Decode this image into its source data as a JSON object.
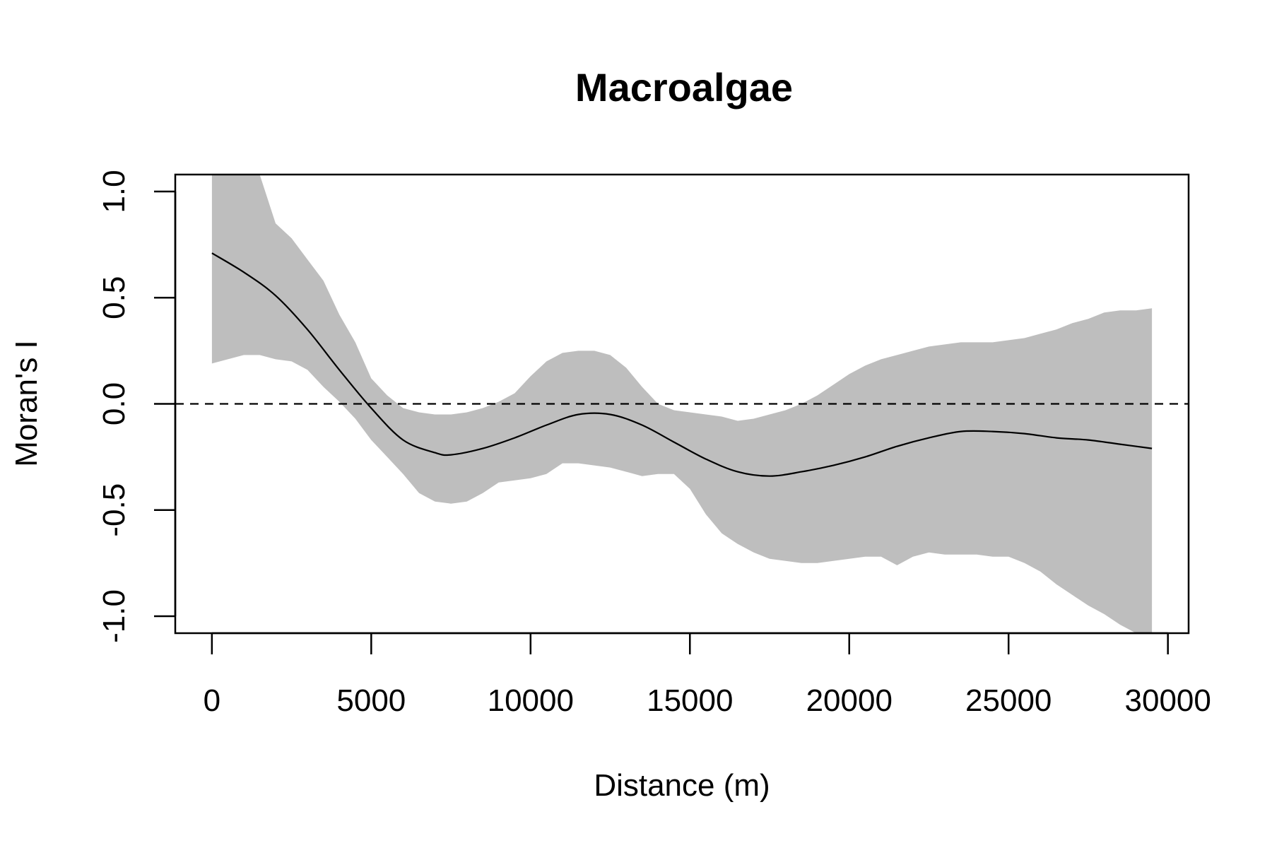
{
  "chart_data": {
    "type": "line",
    "title": "Macroalgae",
    "xlabel": "Distance (m)",
    "ylabel": "Moran's I",
    "xlim": [
      -1150,
      30650
    ],
    "ylim": [
      -1.08,
      1.08
    ],
    "x_ticks": [
      0,
      5000,
      10000,
      15000,
      20000,
      25000,
      30000
    ],
    "x_tick_labels": [
      "0",
      "5000",
      "10000",
      "15000",
      "20000",
      "25000",
      "30000"
    ],
    "y_ticks": [
      -1.0,
      -0.5,
      0.0,
      0.5,
      1.0
    ],
    "y_tick_labels": [
      "-1.0",
      "-0.5",
      "0.0",
      "0.5",
      "1.0"
    ],
    "reference_line": {
      "y": 0,
      "style": "dashed"
    },
    "grid": false,
    "colors": {
      "line": "#000000",
      "band": "#bebebe"
    },
    "series": [
      {
        "x": [
          0,
          1000,
          2000,
          3000,
          4000,
          5000,
          6000,
          7000,
          7500,
          8500,
          9500,
          10500,
          11500,
          12500,
          13500,
          14500,
          15500,
          16500,
          17500,
          18500,
          19500,
          20500,
          21500,
          22500,
          23500,
          24500,
          25500,
          26500,
          27500,
          28500,
          29500
        ],
        "y": [
          0.71,
          0.62,
          0.51,
          0.35,
          0.16,
          -0.02,
          -0.17,
          -0.23,
          -0.24,
          -0.21,
          -0.16,
          -0.1,
          -0.05,
          -0.05,
          -0.1,
          -0.18,
          -0.26,
          -0.32,
          -0.34,
          -0.32,
          -0.29,
          -0.25,
          -0.2,
          -0.16,
          -0.13,
          -0.13,
          -0.14,
          -0.16,
          -0.17,
          -0.19,
          -0.21
        ]
      }
    ],
    "band": {
      "x": [
        0,
        500,
        1000,
        1500,
        2000,
        2500,
        3000,
        3500,
        4000,
        4500,
        5000,
        5500,
        6000,
        6500,
        7000,
        7500,
        8000,
        8500,
        9000,
        9500,
        10000,
        10500,
        11000,
        11500,
        12000,
        12500,
        13000,
        13500,
        14000,
        14500,
        15000,
        15500,
        16000,
        16500,
        17000,
        17500,
        18000,
        18500,
        19000,
        19500,
        20000,
        20500,
        21000,
        21500,
        22000,
        22500,
        23000,
        23500,
        24000,
        24500,
        25000,
        25500,
        26000,
        26500,
        27000,
        27500,
        28000,
        28500,
        29000,
        29500
      ],
      "upper": [
        1.08,
        1.08,
        1.08,
        1.08,
        0.85,
        0.78,
        0.68,
        0.58,
        0.42,
        0.29,
        0.12,
        0.04,
        -0.02,
        -0.04,
        -0.05,
        -0.05,
        -0.04,
        -0.02,
        0.01,
        0.05,
        0.13,
        0.2,
        0.24,
        0.25,
        0.25,
        0.23,
        0.17,
        0.08,
        0.0,
        -0.03,
        -0.04,
        -0.05,
        -0.06,
        -0.08,
        -0.07,
        -0.05,
        -0.03,
        0.0,
        0.04,
        0.09,
        0.14,
        0.18,
        0.21,
        0.23,
        0.25,
        0.27,
        0.28,
        0.29,
        0.29,
        0.29,
        0.3,
        0.31,
        0.33,
        0.35,
        0.38,
        0.4,
        0.43,
        0.44,
        0.44,
        0.45
      ],
      "lower": [
        0.19,
        0.21,
        0.23,
        0.23,
        0.21,
        0.2,
        0.16,
        0.08,
        0.01,
        -0.07,
        -0.17,
        -0.25,
        -0.33,
        -0.42,
        -0.46,
        -0.47,
        -0.46,
        -0.42,
        -0.37,
        -0.36,
        -0.35,
        -0.33,
        -0.28,
        -0.28,
        -0.29,
        -0.3,
        -0.32,
        -0.34,
        -0.33,
        -0.33,
        -0.4,
        -0.52,
        -0.61,
        -0.66,
        -0.7,
        -0.73,
        -0.74,
        -0.75,
        -0.75,
        -0.74,
        -0.73,
        -0.72,
        -0.72,
        -0.76,
        -0.72,
        -0.7,
        -0.71,
        -0.71,
        -0.71,
        -0.72,
        -0.72,
        -0.75,
        -0.79,
        -0.85,
        -0.9,
        -0.95,
        -0.99,
        -1.04,
        -1.08,
        -1.08
      ]
    }
  }
}
